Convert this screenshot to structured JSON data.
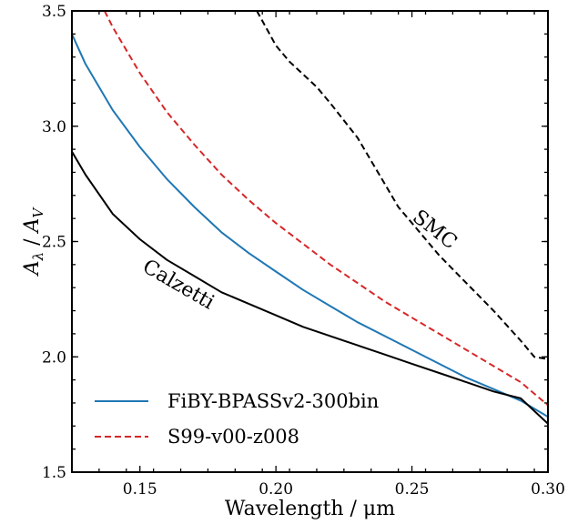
{
  "chart_data": {
    "type": "line",
    "xlabel": "Wavelength / μm",
    "ylabel": "A_λ / A_V",
    "ylabel_parts": {
      "a": "A",
      "sub1": "λ",
      "sep": " / ",
      "b": "A",
      "sub2": "V"
    },
    "xlim": [
      0.125,
      0.3
    ],
    "ylim": [
      1.5,
      3.5
    ],
    "xticks": [
      0.15,
      0.2,
      0.25,
      0.3
    ],
    "xtick_labels": [
      "0.15",
      "0.20",
      "0.25",
      "0.30"
    ],
    "yticks": [
      1.5,
      2.0,
      2.5,
      3.0,
      3.5
    ],
    "ytick_labels": [
      "1.5",
      "2.0",
      "2.5",
      "3.0",
      "3.5"
    ],
    "legend_position": "lower-left",
    "grid": false,
    "series": [
      {
        "name": "FiBY-BPASSv2-300bin",
        "color": "#1f77b4",
        "style": "solid",
        "in_legend": true,
        "x": [
          0.125,
          0.13,
          0.14,
          0.15,
          0.16,
          0.17,
          0.18,
          0.19,
          0.2,
          0.21,
          0.22,
          0.23,
          0.24,
          0.25,
          0.26,
          0.27,
          0.28,
          0.29,
          0.3
        ],
        "y": [
          3.4,
          3.27,
          3.07,
          2.91,
          2.77,
          2.65,
          2.54,
          2.45,
          2.37,
          2.29,
          2.22,
          2.15,
          2.09,
          2.03,
          1.97,
          1.91,
          1.86,
          1.81,
          1.74
        ]
      },
      {
        "name": "S99-v00-z008",
        "color": "#d62728",
        "style": "dashed",
        "in_legend": true,
        "x": [
          0.137,
          0.14,
          0.15,
          0.16,
          0.17,
          0.18,
          0.19,
          0.2,
          0.21,
          0.22,
          0.23,
          0.24,
          0.25,
          0.26,
          0.27,
          0.28,
          0.29,
          0.3
        ],
        "y": [
          3.5,
          3.43,
          3.23,
          3.06,
          2.92,
          2.79,
          2.68,
          2.58,
          2.49,
          2.4,
          2.32,
          2.24,
          2.17,
          2.1,
          2.03,
          1.96,
          1.89,
          1.79
        ]
      },
      {
        "name": "Calzetti",
        "color": "#000000",
        "style": "solid",
        "in_legend": false,
        "x": [
          0.125,
          0.13,
          0.14,
          0.15,
          0.16,
          0.17,
          0.18,
          0.19,
          0.2,
          0.21,
          0.22,
          0.23,
          0.24,
          0.25,
          0.26,
          0.27,
          0.28,
          0.29,
          0.3
        ],
        "y": [
          2.89,
          2.79,
          2.62,
          2.51,
          2.42,
          2.35,
          2.28,
          2.23,
          2.18,
          2.13,
          2.09,
          2.05,
          2.01,
          1.97,
          1.93,
          1.89,
          1.85,
          1.82,
          1.71
        ]
      },
      {
        "name": "SMC",
        "color": "#000000",
        "style": "dashed",
        "in_legend": false,
        "x": [
          0.193,
          0.2,
          0.205,
          0.215,
          0.22,
          0.23,
          0.24,
          0.245,
          0.25,
          0.26,
          0.27,
          0.28,
          0.29,
          0.295,
          0.3
        ],
        "y": [
          3.5,
          3.35,
          3.28,
          3.17,
          3.1,
          2.95,
          2.75,
          2.65,
          2.58,
          2.44,
          2.32,
          2.2,
          2.07,
          2.0,
          1.99
        ]
      }
    ],
    "annotations": [
      {
        "text": "SMC",
        "x": 0.257,
        "y": 2.53,
        "angle": 38
      },
      {
        "text": "Calzetti",
        "x": 0.163,
        "y": 2.29,
        "angle": 30
      }
    ]
  }
}
